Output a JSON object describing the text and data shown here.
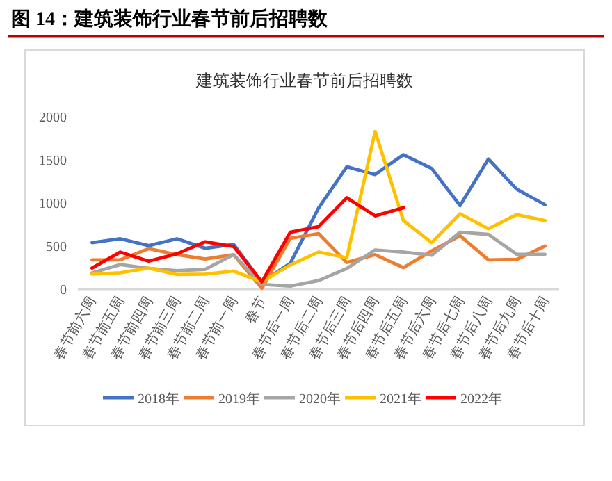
{
  "chart_data": {
    "type": "line",
    "title": "建筑装饰行业春节前后招聘数",
    "annotations": [
      "图 14：建筑装饰行业春节前后招聘数"
    ],
    "categories": [
      "春节前六周",
      "春节前五周",
      "春节前四周",
      "春节前三周",
      "春节前二周",
      "春节前一周",
      "春节",
      "春节后一周",
      "春节后二周",
      "春节后三周",
      "春节后四周",
      "春节后五周",
      "春节后六周",
      "春节后七周",
      "春节后八周",
      "春节后九周",
      "春节后十周"
    ],
    "series": [
      {
        "name": "2018年",
        "color": "#4472c4",
        "values": [
          540,
          585,
          505,
          585,
          475,
          520,
          80,
          300,
          940,
          1420,
          1330,
          1560,
          1400,
          970,
          1510,
          1160,
          980
        ]
      },
      {
        "name": "2019年",
        "color": "#ed7d31",
        "values": [
          340,
          340,
          470,
          400,
          350,
          400,
          10,
          590,
          645,
          310,
          400,
          250,
          445,
          620,
          340,
          345,
          500
        ]
      },
      {
        "name": "2020年",
        "color": "#a5a5a5",
        "values": [
          190,
          285,
          240,
          215,
          230,
          400,
          55,
          35,
          100,
          240,
          455,
          430,
          395,
          660,
          635,
          405,
          405
        ]
      },
      {
        "name": "2021年",
        "color": "#ffc000",
        "values": [
          175,
          190,
          245,
          170,
          175,
          210,
          85,
          280,
          430,
          365,
          1830,
          795,
          540,
          875,
          700,
          865,
          795
        ]
      },
      {
        "name": "2022年",
        "color": "#ff0000",
        "values": [
          245,
          430,
          325,
          410,
          550,
          495,
          85,
          660,
          725,
          1060,
          850,
          945,
          null,
          null,
          null,
          null,
          null
        ]
      }
    ],
    "ylim": [
      0,
      2000
    ],
    "yticks": [
      0,
      500,
      1000,
      1500,
      2000
    ],
    "legend": "bottom"
  }
}
